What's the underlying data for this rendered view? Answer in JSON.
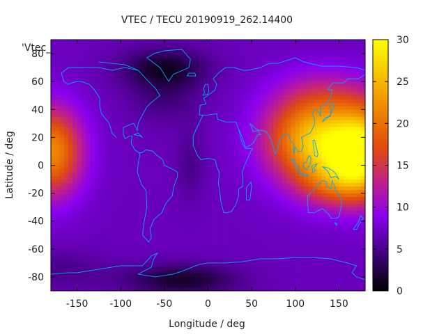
{
  "chart_data": {
    "type": "heatmap",
    "title": "VTEC / TECU 20190919_262.14400",
    "series_label": "'Vtec_",
    "xlabel": "Longitude / deg",
    "ylabel": "Latitude / deg",
    "xlim": [
      -180,
      180
    ],
    "ylim": [
      -90,
      90
    ],
    "x_ticks": [
      -150,
      -100,
      -50,
      0,
      50,
      100,
      150
    ],
    "x_tick_labels": [
      "-150",
      "-100",
      "-50",
      "0",
      "50",
      "100",
      "150"
    ],
    "y_ticks": [
      -80,
      -60,
      -40,
      -20,
      0,
      20,
      40,
      60,
      80
    ],
    "y_tick_labels": [
      "-80",
      "-60",
      "-40",
      "-20",
      "0",
      "20",
      "40",
      "60",
      "80"
    ],
    "colorbar": {
      "range": [
        0,
        30
      ],
      "ticks": [
        0,
        5,
        10,
        15,
        20,
        25,
        30
      ],
      "tick_labels": [
        "0",
        "5",
        "10",
        "15",
        "20",
        "25",
        "30"
      ],
      "palette": [
        {
          "v": 0,
          "color": "#000000"
        },
        {
          "v": 4,
          "color": "#3a0070"
        },
        {
          "v": 9,
          "color": "#8a00f0"
        },
        {
          "v": 13,
          "color": "#c0208a"
        },
        {
          "v": 17,
          "color": "#e04a10"
        },
        {
          "v": 22,
          "color": "#f08a00"
        },
        {
          "v": 30,
          "color": "#ffff00"
        }
      ]
    },
    "grid": false,
    "coastline_color": "#00a8ff",
    "background_vtec": 7,
    "vtec_features": [
      {
        "lon": 140,
        "lat": 12,
        "sigma_lon": 42,
        "sigma_lat": 22,
        "amplitude": 15
      },
      {
        "lon": 110,
        "lat": 22,
        "sigma_lon": 35,
        "sigma_lat": 18,
        "amplitude": 7
      },
      {
        "lon": 150,
        "lat": -12,
        "sigma_lon": 30,
        "sigma_lat": 12,
        "amplitude": 6
      },
      {
        "lon": -180,
        "lat": 10,
        "sigma_lon": 25,
        "sigma_lat": 22,
        "amplitude": 15
      },
      {
        "lon": 180,
        "lat": 10,
        "sigma_lon": 25,
        "sigma_lat": 22,
        "amplitude": 15
      },
      {
        "lon": 130,
        "lat": 50,
        "sigma_lon": 40,
        "sigma_lat": 15,
        "amplitude": 4
      },
      {
        "lon": -50,
        "lat": 70,
        "sigma_lon": 35,
        "sigma_lat": 10,
        "amplitude": -5
      },
      {
        "lon": -50,
        "lat": 50,
        "sigma_lon": 30,
        "sigma_lat": 15,
        "amplitude": -2.5
      },
      {
        "lon": -30,
        "lat": -82,
        "sigma_lon": 45,
        "sigma_lat": 8,
        "amplitude": -5.5
      },
      {
        "lon": -20,
        "lat": 0,
        "sigma_lon": 12,
        "sigma_lat": 18,
        "amplitude": -2
      },
      {
        "lon": -170,
        "lat": -75,
        "sigma_lon": 40,
        "sigma_lat": 10,
        "amplitude": -2
      }
    ],
    "coastlines": [
      [
        [
          -168,
          66
        ],
        [
          -160,
          70
        ],
        [
          -140,
          70
        ],
        [
          -125,
          70
        ],
        [
          -110,
          68
        ],
        [
          -95,
          70
        ],
        [
          -80,
          68
        ],
        [
          -68,
          60
        ],
        [
          -60,
          55
        ],
        [
          -55,
          50
        ],
        [
          -65,
          45
        ],
        [
          -70,
          42
        ],
        [
          -76,
          35
        ],
        [
          -80,
          30
        ],
        [
          -81,
          25
        ],
        [
          -85,
          30
        ],
        [
          -90,
          29
        ],
        [
          -97,
          27
        ],
        [
          -97,
          22
        ],
        [
          -95,
          19
        ],
        [
          -90,
          21
        ],
        [
          -87,
          21
        ],
        [
          -88,
          16
        ],
        [
          -84,
          11
        ],
        [
          -79,
          9
        ],
        [
          -78,
          8
        ],
        [
          -80,
          1
        ],
        [
          -81,
          -5
        ],
        [
          -76,
          -14
        ],
        [
          -71,
          -18
        ],
        [
          -70,
          -30
        ],
        [
          -73,
          -40
        ],
        [
          -75,
          -50
        ],
        [
          -68,
          -55
        ],
        [
          -65,
          -52
        ],
        [
          -66,
          -45
        ],
        [
          -62,
          -39
        ],
        [
          -57,
          -36
        ],
        [
          -53,
          -34
        ],
        [
          -48,
          -27
        ],
        [
          -41,
          -22
        ],
        [
          -39,
          -15
        ],
        [
          -35,
          -8
        ],
        [
          -35,
          -5
        ],
        [
          -40,
          -3
        ],
        [
          -50,
          0
        ],
        [
          -52,
          4
        ],
        [
          -60,
          8
        ],
        [
          -63,
          10
        ],
        [
          -71,
          11
        ],
        [
          -76,
          9
        ],
        [
          -79,
          9
        ]
      ],
      [
        [
          -80,
          68
        ],
        [
          -95,
          72
        ],
        [
          -110,
          73
        ],
        [
          -125,
          74
        ]
      ],
      [
        [
          -105,
          20
        ],
        [
          -110,
          23
        ],
        [
          -113,
          30
        ],
        [
          -117,
          33
        ],
        [
          -122,
          37
        ],
        [
          -124,
          42
        ],
        [
          -124,
          48
        ],
        [
          -130,
          54
        ],
        [
          -136,
          58
        ],
        [
          -145,
          60
        ],
        [
          -152,
          60
        ],
        [
          -160,
          58
        ],
        [
          -165,
          60
        ],
        [
          -168,
          66
        ]
      ],
      [
        [
          -45,
          60
        ],
        [
          -40,
          65
        ],
        [
          -22,
          70
        ],
        [
          -20,
          76
        ],
        [
          -30,
          83
        ],
        [
          -50,
          82
        ],
        [
          -62,
          80
        ],
        [
          -70,
          77
        ],
        [
          -55,
          70
        ],
        [
          -50,
          65
        ],
        [
          -45,
          60
        ]
      ],
      [
        [
          -10,
          36
        ],
        [
          -9,
          43
        ],
        [
          -2,
          44
        ],
        [
          -5,
          48
        ],
        [
          2,
          51
        ],
        [
          8,
          54
        ],
        [
          10,
          58
        ],
        [
          6,
          62
        ],
        [
          12,
          66
        ],
        [
          20,
          70
        ],
        [
          30,
          70
        ],
        [
          40,
          68
        ],
        [
          45,
          68
        ],
        [
          60,
          70
        ],
        [
          70,
          73
        ],
        [
          80,
          73
        ],
        [
          100,
          77
        ],
        [
          110,
          74
        ],
        [
          130,
          71
        ],
        [
          150,
          71
        ],
        [
          170,
          70
        ],
        [
          180,
          68
        ]
      ],
      [
        [
          -10,
          36
        ],
        [
          -6,
          36
        ],
        [
          -17,
          21
        ],
        [
          -17,
          14
        ],
        [
          -12,
          7
        ],
        [
          -8,
          4
        ],
        [
          0,
          5
        ],
        [
          8,
          4
        ],
        [
          9,
          2
        ],
        [
          10,
          -1
        ],
        [
          13,
          -5
        ],
        [
          12,
          -13
        ],
        [
          13,
          -17
        ],
        [
          15,
          -27
        ],
        [
          18,
          -34
        ],
        [
          22,
          -34
        ],
        [
          27,
          -33
        ],
        [
          32,
          -28
        ],
        [
          35,
          -22
        ],
        [
          35,
          -17
        ],
        [
          40,
          -15
        ],
        [
          40,
          -10
        ],
        [
          39,
          -5
        ],
        [
          42,
          0
        ],
        [
          49,
          10
        ],
        [
          51,
          12
        ],
        [
          43,
          12
        ],
        [
          39,
          16
        ],
        [
          35,
          26
        ],
        [
          32,
          31
        ],
        [
          26,
          31
        ],
        [
          20,
          31
        ],
        [
          11,
          33
        ],
        [
          10,
          37
        ],
        [
          0,
          36
        ],
        [
          -6,
          36
        ]
      ],
      [
        [
          44,
          -25
        ],
        [
          48,
          -25
        ],
        [
          50,
          -15
        ],
        [
          49,
          -12
        ],
        [
          44,
          -16
        ],
        [
          44,
          -25
        ]
      ],
      [
        [
          35,
          26
        ],
        [
          38,
          22
        ],
        [
          43,
          13
        ],
        [
          45,
          13
        ],
        [
          52,
          16
        ],
        [
          57,
          22
        ],
        [
          60,
          22
        ],
        [
          57,
          25
        ],
        [
          52,
          24
        ],
        [
          50,
          27
        ],
        [
          48,
          30
        ],
        [
          55,
          26
        ],
        [
          58,
          25
        ],
        [
          62,
          25
        ],
        [
          67,
          24
        ],
        [
          70,
          21
        ],
        [
          73,
          17
        ],
        [
          77,
          8
        ],
        [
          80,
          12
        ],
        [
          80,
          15
        ],
        [
          87,
          22
        ],
        [
          92,
          22
        ],
        [
          95,
          17
        ],
        [
          98,
          16
        ],
        [
          98,
          8
        ],
        [
          100,
          13
        ],
        [
          103,
          10
        ],
        [
          107,
          10
        ],
        [
          109,
          14
        ],
        [
          107,
          20
        ],
        [
          110,
          21
        ],
        [
          117,
          23
        ],
        [
          122,
          29
        ],
        [
          122,
          33
        ],
        [
          120,
          37
        ],
        [
          122,
          40
        ],
        [
          127,
          38
        ],
        [
          129,
          35
        ],
        [
          129,
          42
        ],
        [
          135,
          44
        ],
        [
          140,
          48
        ],
        [
          142,
          54
        ],
        [
          137,
          54
        ],
        [
          143,
          59
        ],
        [
          155,
          59
        ],
        [
          160,
          62
        ],
        [
          172,
          62
        ],
        [
          180,
          65
        ]
      ],
      [
        [
          131,
          31
        ],
        [
          134,
          34
        ],
        [
          140,
          35
        ],
        [
          141,
          39
        ],
        [
          140,
          42
        ],
        [
          142,
          45
        ],
        [
          145,
          43
        ],
        [
          140,
          36
        ],
        [
          135,
          33
        ],
        [
          131,
          31
        ]
      ],
      [
        [
          114,
          -22
        ],
        [
          114,
          -26
        ],
        [
          115,
          -34
        ],
        [
          122,
          -34
        ],
        [
          131,
          -31
        ],
        [
          138,
          -35
        ],
        [
          141,
          -38
        ],
        [
          147,
          -38
        ],
        [
          150,
          -37
        ],
        [
          153,
          -28
        ],
        [
          153,
          -25
        ],
        [
          149,
          -20
        ],
        [
          146,
          -18
        ],
        [
          145,
          -15
        ],
        [
          142,
          -11
        ],
        [
          141,
          -17
        ],
        [
          136,
          -15
        ],
        [
          136,
          -12
        ],
        [
          131,
          -11
        ],
        [
          126,
          -14
        ],
        [
          122,
          -17
        ],
        [
          114,
          -22
        ]
      ],
      [
        [
          145,
          -41
        ],
        [
          148,
          -42
        ],
        [
          147,
          -43
        ],
        [
          145,
          -41
        ]
      ],
      [
        [
          166,
          -46
        ],
        [
          170,
          -46
        ],
        [
          174,
          -41
        ],
        [
          178,
          -38
        ],
        [
          175,
          -36
        ],
        [
          172,
          -41
        ],
        [
          166,
          -46
        ]
      ],
      [
        [
          95,
          5
        ],
        [
          98,
          4
        ],
        [
          104,
          -2
        ],
        [
          106,
          -6
        ],
        [
          102,
          -4
        ],
        [
          98,
          2
        ],
        [
          95,
          5
        ]
      ],
      [
        [
          105,
          -6
        ],
        [
          110,
          -7
        ],
        [
          115,
          -8
        ],
        [
          114,
          -7
        ],
        [
          108,
          -6
        ],
        [
          105,
          -6
        ]
      ],
      [
        [
          109,
          1
        ],
        [
          110,
          -2
        ],
        [
          114,
          -3
        ],
        [
          117,
          1
        ],
        [
          118,
          5
        ],
        [
          116,
          7
        ],
        [
          113,
          3
        ],
        [
          109,
          1
        ]
      ],
      [
        [
          119,
          -1
        ],
        [
          120,
          -5
        ],
        [
          123,
          -4
        ],
        [
          121,
          -2
        ],
        [
          125,
          1
        ],
        [
          120,
          0
        ],
        [
          119,
          -1
        ]
      ],
      [
        [
          131,
          -1
        ],
        [
          138,
          -2
        ],
        [
          145,
          -5
        ],
        [
          150,
          -10
        ],
        [
          146,
          -8
        ],
        [
          141,
          -9
        ],
        [
          137,
          -4
        ],
        [
          131,
          -1
        ]
      ],
      [
        [
          120,
          18
        ],
        [
          122,
          18
        ],
        [
          124,
          13
        ],
        [
          126,
          8
        ],
        [
          125,
          6
        ],
        [
          122,
          7
        ],
        [
          121,
          14
        ],
        [
          120,
          18
        ]
      ],
      [
        [
          -6,
          50
        ],
        [
          -4,
          52
        ],
        [
          -5,
          55
        ],
        [
          -3,
          58
        ],
        [
          0,
          58
        ],
        [
          1,
          53
        ],
        [
          0,
          51
        ],
        [
          -6,
          50
        ]
      ],
      [
        [
          -24,
          64
        ],
        [
          -22,
          66
        ],
        [
          -15,
          66
        ],
        [
          -14,
          64
        ],
        [
          -24,
          64
        ]
      ],
      [
        [
          -180,
          -78
        ],
        [
          -160,
          -77
        ],
        [
          -150,
          -77
        ],
        [
          -130,
          -75
        ],
        [
          -100,
          -72
        ],
        [
          -75,
          -72
        ],
        [
          -65,
          -65
        ],
        [
          -58,
          -63
        ],
        [
          -62,
          -67
        ],
        [
          -65,
          -73
        ],
        [
          -80,
          -78
        ],
        [
          -60,
          -80
        ],
        [
          -40,
          -78
        ],
        [
          -30,
          -76
        ],
        [
          -10,
          -71
        ],
        [
          0,
          -70
        ],
        [
          20,
          -70
        ],
        [
          40,
          -69
        ],
        [
          60,
          -67
        ],
        [
          80,
          -67
        ],
        [
          100,
          -66
        ],
        [
          120,
          -66
        ],
        [
          140,
          -67
        ],
        [
          160,
          -70
        ],
        [
          170,
          -72
        ],
        [
          165,
          -77
        ],
        [
          170,
          -80
        ],
        [
          180,
          -82
        ]
      ],
      [
        [
          -85,
          22
        ],
        [
          -80,
          23
        ],
        [
          -75,
          20
        ],
        [
          -78,
          21
        ],
        [
          -85,
          22
        ]
      ]
    ]
  }
}
